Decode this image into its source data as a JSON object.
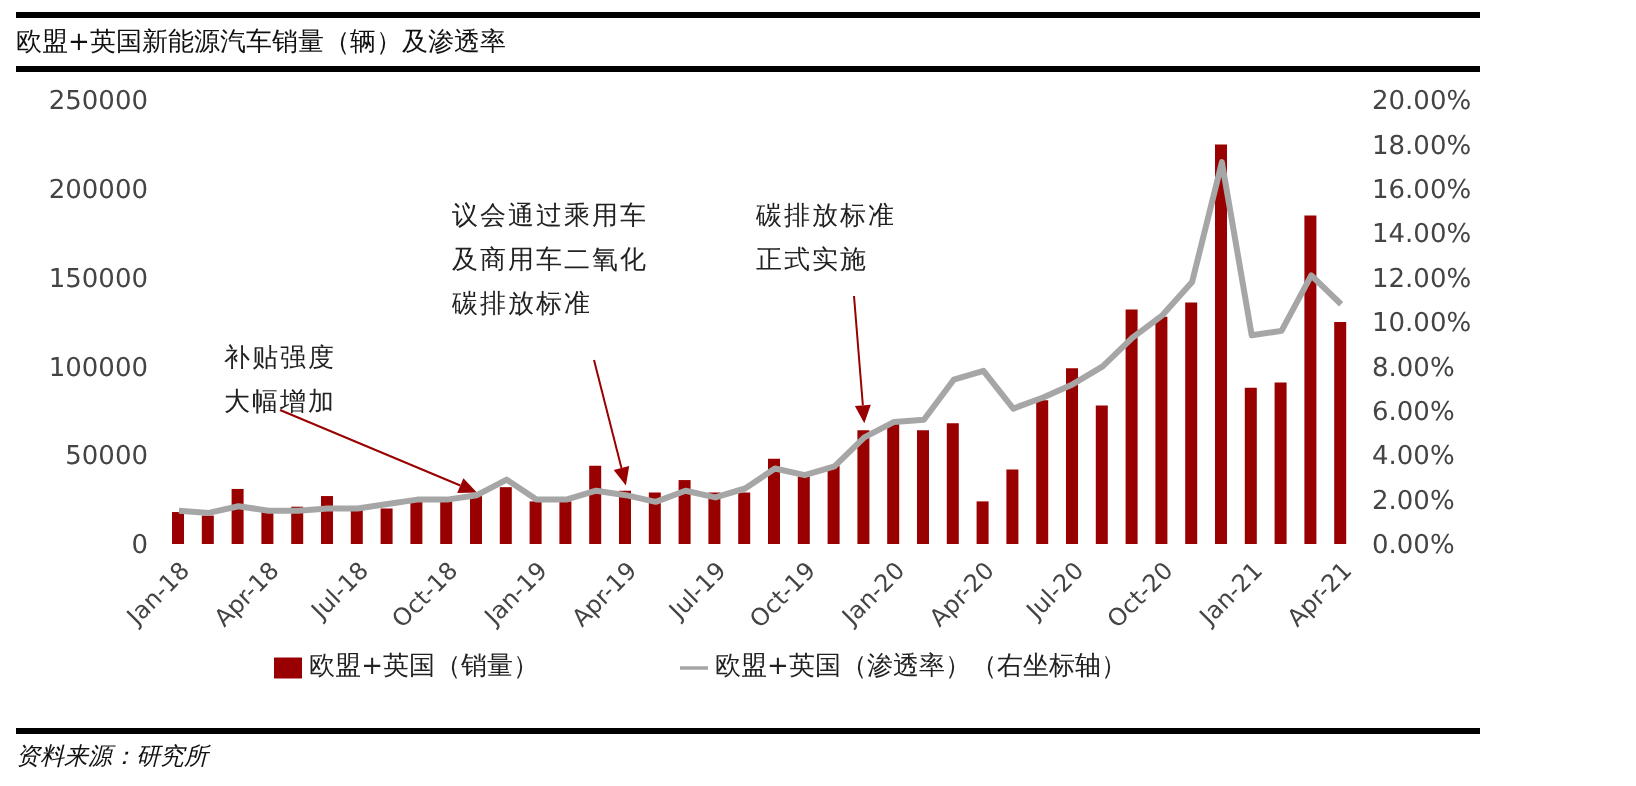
{
  "chart_data": {
    "type": "bar",
    "title": "欧盟+英国新能源汽车销量（辆）及渗透率",
    "categories": [
      "Jan-18",
      null,
      null,
      "Apr-18",
      null,
      null,
      "Jul-18",
      null,
      null,
      "Oct-18",
      null,
      null,
      "Jan-19",
      null,
      null,
      "Apr-19",
      null,
      null,
      "Jul-19",
      null,
      null,
      "Oct-19",
      null,
      null,
      "Jan-20",
      null,
      null,
      "Apr-20",
      null,
      null,
      "Jul-20",
      null,
      null,
      "Oct-20",
      null,
      null,
      "Jan-21",
      null,
      null,
      "Apr-21"
    ],
    "series": [
      {
        "name": "欧盟+英国（销量）",
        "color": "#990000",
        "values": [
          18000,
          16000,
          31000,
          20000,
          21000,
          27000,
          21000,
          20000,
          24000,
          24000,
          27000,
          32000,
          24000,
          24000,
          44000,
          30000,
          29000,
          36000,
          29000,
          29000,
          48000,
          38000,
          44000,
          64000,
          68000,
          64000,
          68000,
          24000,
          42000,
          81000,
          99000,
          78000,
          132000,
          128000,
          136000,
          225000,
          88000,
          91000,
          185000,
          125000
        ]
      },
      {
        "name": "欧盟+英国（渗透率）（右坐标轴）",
        "type": "line",
        "axis": "y2",
        "color": "#a6a6a6",
        "values": [
          1.5,
          1.4,
          1.7,
          1.5,
          1.5,
          1.6,
          1.6,
          1.8,
          2.0,
          2.0,
          2.2,
          2.9,
          2.0,
          2.0,
          2.4,
          2.2,
          1.9,
          2.4,
          2.1,
          2.5,
          3.4,
          3.1,
          3.5,
          4.8,
          5.5,
          5.6,
          7.4,
          7.8,
          6.1,
          6.6,
          7.2,
          8.0,
          9.3,
          10.3,
          11.8,
          17.2,
          9.4,
          9.6,
          12.1,
          10.8
        ]
      }
    ],
    "ylim": [
      0,
      250000
    ],
    "yticks": [
      0,
      50000,
      100000,
      150000,
      200000,
      250000
    ],
    "y2lim": [
      0,
      20
    ],
    "y2ticks": [
      {
        "value": 0,
        "label": "0.00%"
      },
      {
        "value": 2,
        "label": "2.00%"
      },
      {
        "value": 4,
        "label": "4.00%"
      },
      {
        "value": 6,
        "label": "6.00%"
      },
      {
        "value": 8,
        "label": "8.00%"
      },
      {
        "value": 10,
        "label": "10.00%"
      },
      {
        "value": 12,
        "label": "12.00%"
      },
      {
        "value": 14,
        "label": "14.00%"
      },
      {
        "value": 16,
        "label": "16.00%"
      },
      {
        "value": 18,
        "label": "18.00%"
      },
      {
        "value": 20,
        "label": "20.00%"
      }
    ],
    "grid": false,
    "legend": "bottom",
    "marker": "none",
    "annotations": [
      "补贴强度大幅增加",
      "议会通过乘用车及商用车二氧化碳排放标准",
      "碳排放标准正式实施",
      "资料来源：研究所"
    ]
  }
}
